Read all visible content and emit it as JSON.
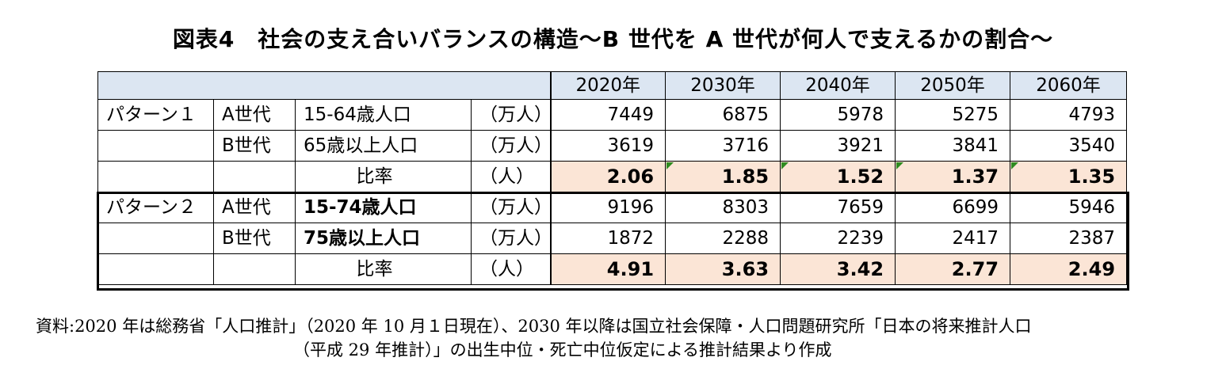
{
  "title": "図表4　社会の支え合いバランスの構造～B 世代を A 世代が何人で支えるかの割合～",
  "chart_data": {
    "type": "table",
    "years": [
      "2020年",
      "2030年",
      "2040年",
      "2050年",
      "2060年"
    ],
    "patterns": [
      {
        "name": "パターン１",
        "rows": [
          {
            "gen": "A世代",
            "label": "15-64歳人口",
            "unit": "（万人）",
            "values": [
              "7449",
              "6875",
              "5978",
              "5275",
              "4793"
            ]
          },
          {
            "gen": "B世代",
            "label": "65歳以上人口",
            "unit": "（万人）",
            "values": [
              "3619",
              "3716",
              "3921",
              "3841",
              "3540"
            ]
          },
          {
            "gen": "",
            "label": "比率",
            "unit": "（人）",
            "values": [
              "2.06",
              "1.85",
              "1.52",
              "1.37",
              "1.35"
            ]
          }
        ]
      },
      {
        "name": "パターン２",
        "rows": [
          {
            "gen": "A世代",
            "label": "15-74歳人口",
            "unit": "（万人）",
            "values": [
              "9196",
              "8303",
              "7659",
              "6699",
              "5946"
            ]
          },
          {
            "gen": "B世代",
            "label": "75歳以上人口",
            "unit": "（万人）",
            "values": [
              "1872",
              "2288",
              "2239",
              "2417",
              "2387"
            ]
          },
          {
            "gen": "",
            "label": "比率",
            "unit": "（人）",
            "values": [
              "4.91",
              "3.63",
              "3.42",
              "2.77",
              "2.49"
            ]
          }
        ]
      }
    ]
  },
  "source": {
    "line1": "資料:2020 年は総務省「人口推計」（2020 年 10 月１日現在）、2030 年以降は国立社会保障・人口問題研究所「日本の将来推計人口",
    "line2": "（平成 29 年推計）」の出生中位・死亡中位仮定による推計結果より作成"
  },
  "colors": {
    "header_bg": "#dce6f2",
    "ratio_bg": "#fbe5d6",
    "marker": "#2e8b20"
  }
}
